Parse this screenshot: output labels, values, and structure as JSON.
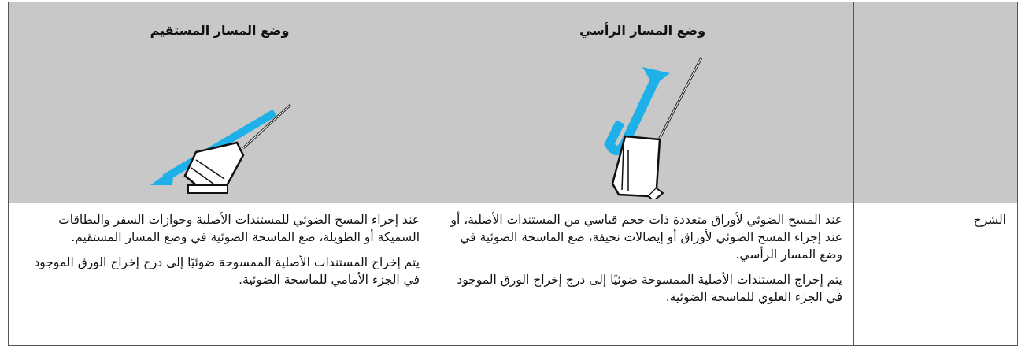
{
  "table": {
    "columns": [
      "وضع المسار الرأسي",
      "وضع المسار المستقيم"
    ],
    "row_label": "الشرح",
    "cells": [
      {
        "paragraphs": [
          "عند المسح الضوئي لأوراق متعددة ذات حجم قياسي من المستندات الأصلية،  أو عند إجراء المسح الضوئي لأوراق أو إيصالات نحيفة، ضع الماسحة الضوئية في وضع المسار الرأسي.",
          "يتم إخراج المستندات الأصلية الممسوحة ضوئيًا إلى درج إخراج الورق الموجود في الجزء العلوي للماسحة الضوئية."
        ]
      },
      {
        "paragraphs": [
          "عند إجراء المسح الضوئي للمستندات الأصلية وجوازات السفر والبطاقات السميكة أو الطويلة،  ضع الماسحة الضوئية في وضع المسار المستقيم.",
          "يتم إخراج المستندات الأصلية الممسوحة ضوئيًا إلى درج إخراج الورق الموجود في الجزء الأمامي للماسحة الضوئية."
        ]
      }
    ]
  }
}
